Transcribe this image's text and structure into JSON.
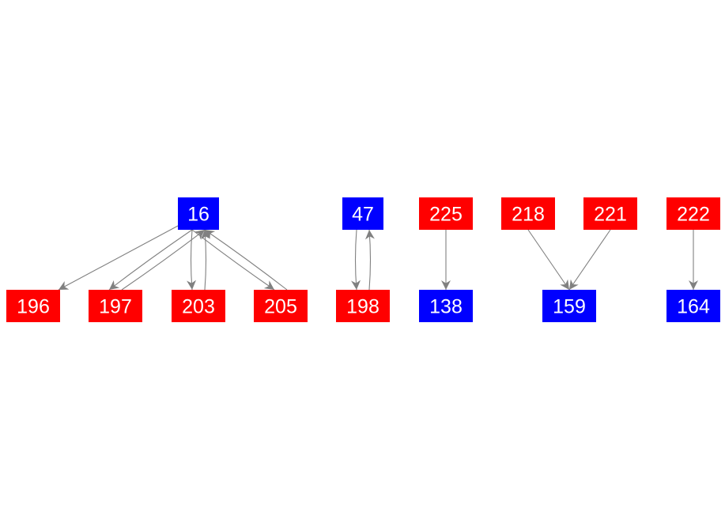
{
  "colors": {
    "red": "#ff0000",
    "blue": "#0000ff",
    "edge": "#808080",
    "label": "#ffffff"
  },
  "nodes": [
    {
      "id": "16",
      "label": "16",
      "color": "blue"
    },
    {
      "id": "196",
      "label": "196",
      "color": "red"
    },
    {
      "id": "197",
      "label": "197",
      "color": "red"
    },
    {
      "id": "203",
      "label": "203",
      "color": "red"
    },
    {
      "id": "205",
      "label": "205",
      "color": "red"
    },
    {
      "id": "47",
      "label": "47",
      "color": "blue"
    },
    {
      "id": "198",
      "label": "198",
      "color": "red"
    },
    {
      "id": "225",
      "label": "225",
      "color": "red"
    },
    {
      "id": "138",
      "label": "138",
      "color": "blue"
    },
    {
      "id": "218",
      "label": "218",
      "color": "red"
    },
    {
      "id": "221",
      "label": "221",
      "color": "red"
    },
    {
      "id": "159",
      "label": "159",
      "color": "blue"
    },
    {
      "id": "222",
      "label": "222",
      "color": "red"
    },
    {
      "id": "164",
      "label": "164",
      "color": "blue"
    }
  ],
  "edges": [
    {
      "from": "16",
      "to": "196"
    },
    {
      "from": "16",
      "to": "197"
    },
    {
      "from": "197",
      "to": "16"
    },
    {
      "from": "16",
      "to": "203"
    },
    {
      "from": "203",
      "to": "16"
    },
    {
      "from": "16",
      "to": "205"
    },
    {
      "from": "205",
      "to": "16"
    },
    {
      "from": "47",
      "to": "198"
    },
    {
      "from": "198",
      "to": "47"
    },
    {
      "from": "225",
      "to": "138"
    },
    {
      "from": "218",
      "to": "159"
    },
    {
      "from": "221",
      "to": "159"
    },
    {
      "from": "222",
      "to": "164"
    }
  ]
}
